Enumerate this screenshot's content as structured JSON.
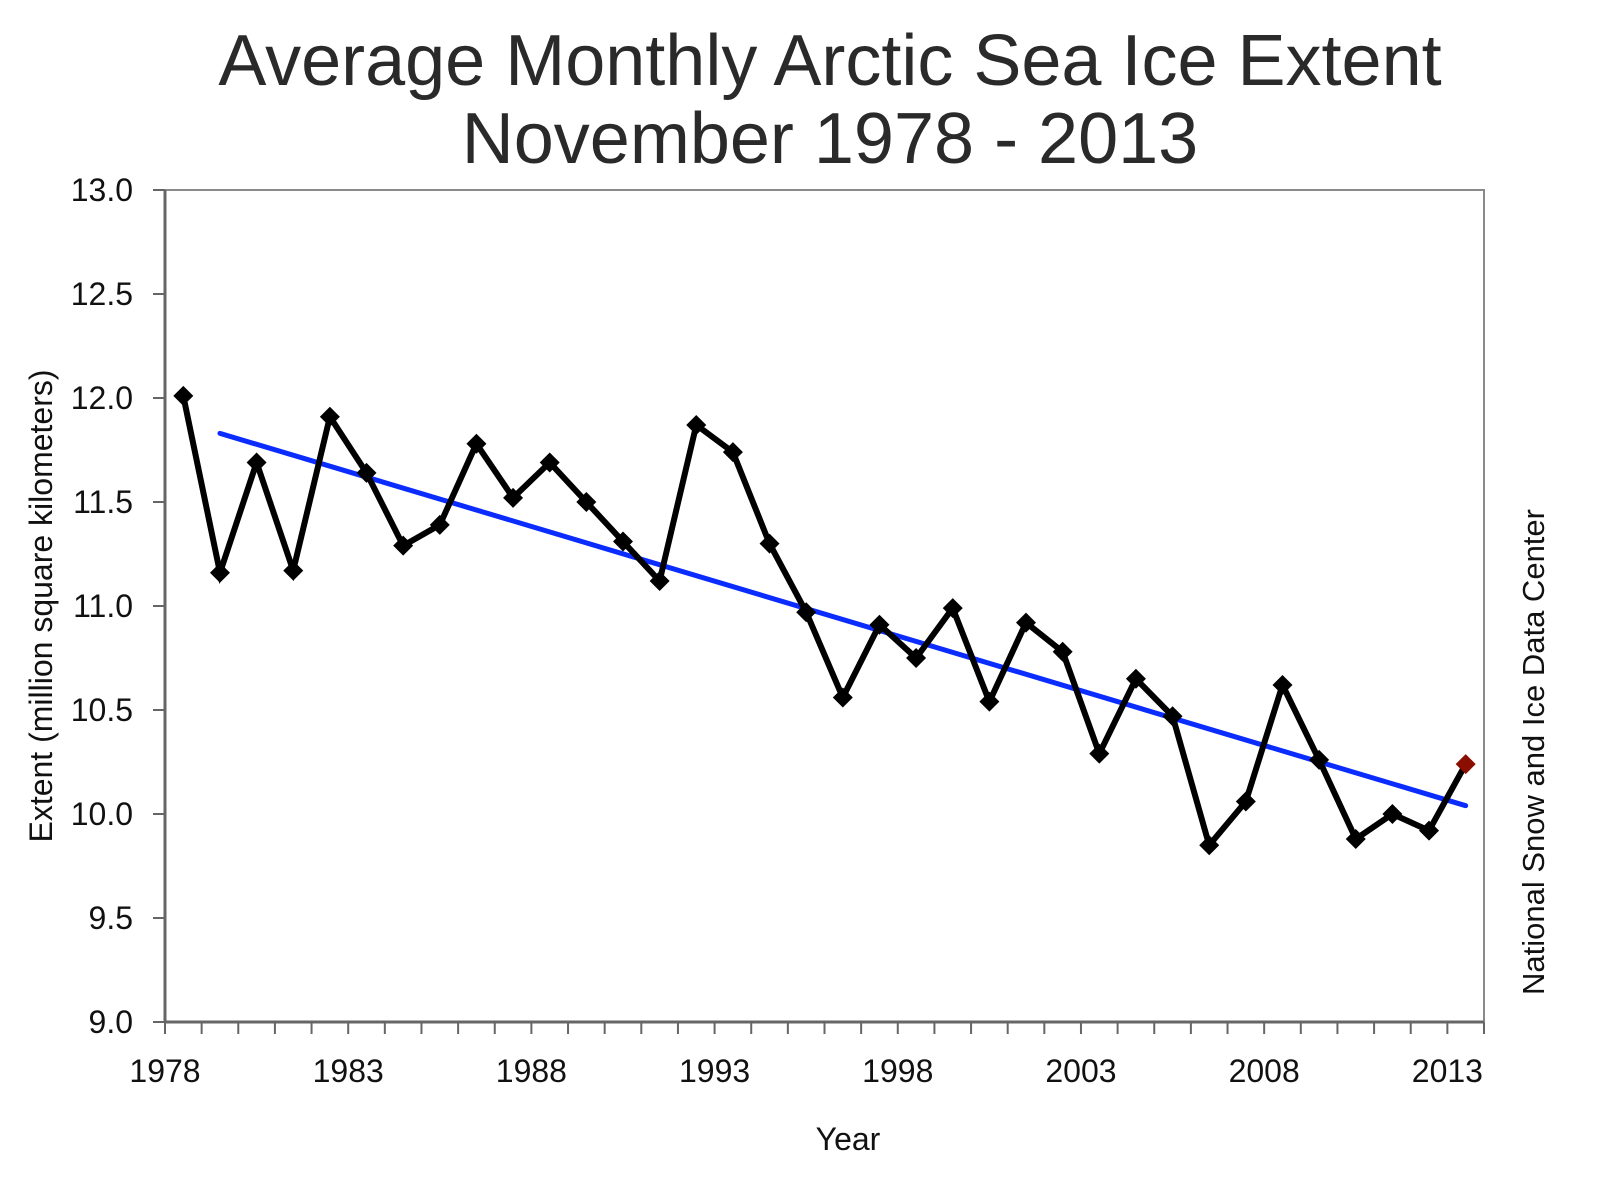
{
  "chart_data": {
    "type": "line",
    "title": "Average Monthly Arctic Sea Ice Extent",
    "subtitle": "November 1978 - 2013",
    "xlabel": "Year",
    "ylabel": "Extent (million square kilometers)",
    "credit": "National Snow and Ice Data Center",
    "xlim": [
      1978,
      2013
    ],
    "ylim": [
      9.0,
      13.0
    ],
    "yticks": [
      "13.0",
      "12.5",
      "12.0",
      "11.5",
      "11.0",
      "10.5",
      "10.0",
      "9.5",
      "9.0"
    ],
    "xticks": [
      "1978",
      "1983",
      "1988",
      "1993",
      "1998",
      "2003",
      "2008",
      "2013"
    ],
    "grid": false,
    "series": [
      {
        "name": "November extent",
        "color": "#000000",
        "x": [
          1978,
          1979,
          1980,
          1981,
          1982,
          1983,
          1984,
          1985,
          1986,
          1987,
          1988,
          1989,
          1990,
          1991,
          1992,
          1993,
          1994,
          1995,
          1996,
          1997,
          1998,
          1999,
          2000,
          2001,
          2002,
          2003,
          2004,
          2005,
          2006,
          2007,
          2008,
          2009,
          2010,
          2011,
          2012,
          2013
        ],
        "values": [
          12.01,
          11.16,
          11.69,
          11.17,
          11.91,
          11.64,
          11.29,
          11.39,
          11.78,
          11.52,
          11.69,
          11.5,
          11.31,
          11.12,
          11.87,
          11.74,
          11.3,
          10.97,
          10.56,
          10.91,
          10.75,
          10.99,
          10.54,
          10.92,
          10.78,
          10.29,
          10.65,
          10.47,
          9.85,
          10.06,
          10.62,
          10.26,
          9.88,
          10.0,
          9.92,
          10.24
        ],
        "highlight_last_color": "#8b0f00"
      },
      {
        "name": "Linear trend",
        "color": "#0a2cff",
        "x": [
          1979,
          2013
        ],
        "values": [
          11.83,
          10.04
        ]
      }
    ]
  }
}
